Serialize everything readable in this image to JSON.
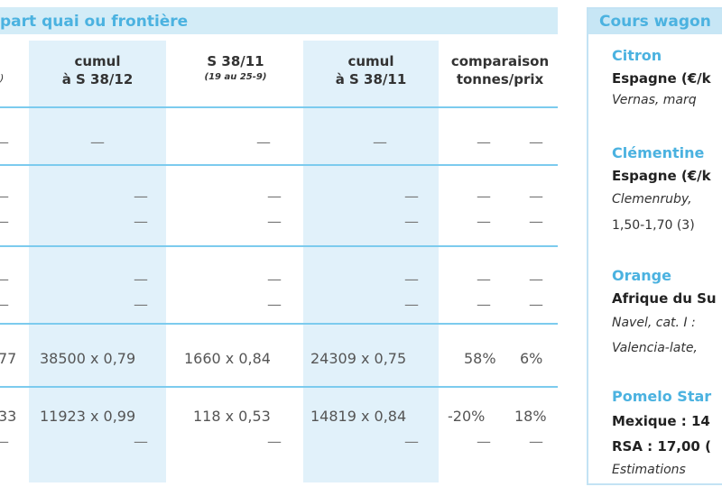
{
  "left_table": {
    "header_title": "part quai ou frontière",
    "left_stub_header": ")",
    "columns": [
      {
        "line1": "cumul",
        "line2": "à S 38/12",
        "sub": ""
      },
      {
        "line1": "S 38/11",
        "line2": "",
        "sub": "(19 au 25-9)"
      },
      {
        "line1": "cumul",
        "line2": "à S 38/11",
        "sub": ""
      },
      {
        "line1": "comparaison",
        "line2": "tonnes/prix",
        "sub": ""
      }
    ],
    "rows": [
      {
        "stub": "—",
        "c1": "—",
        "c2": "—",
        "c3": "—",
        "c4a": "—",
        "c4b": "—"
      },
      {
        "stub": "—",
        "c1": "—",
        "c2": "—",
        "c3": "—",
        "c4a": "—",
        "c4b": "—"
      },
      {
        "stub": "—",
        "c1": "—",
        "c2": "—",
        "c3": "—",
        "c4a": "—",
        "c4b": "—"
      },
      {
        "stub": "—",
        "c1": "—",
        "c2": "—",
        "c3": "—",
        "c4a": "—",
        "c4b": "—"
      },
      {
        "stub": "—",
        "c1": "—",
        "c2": "—",
        "c3": "—",
        "c4a": "—",
        "c4b": "—"
      },
      {
        "stub": "77",
        "c1": "38500 x 0,79",
        "c2": "1660 x 0,84",
        "c3": "24309 x 0,75",
        "c4a": "58%",
        "c4b": "6%"
      },
      {
        "stub": "33",
        "c1": "11923 x 0,99",
        "c2": "118 x 0,53",
        "c3": "14819 x 0,84",
        "c4a": "-20%",
        "c4b": "18%"
      },
      {
        "stub": "—",
        "c1": "—",
        "c2": "—",
        "c3": "—",
        "c4a": "—",
        "c4b": "—"
      }
    ]
  },
  "right_panel": {
    "header_title": "Cours wagon",
    "sections": [
      {
        "fruit": "Citron",
        "origin": "Espagne (€/k",
        "lines": [
          "Vernas, marq"
        ]
      },
      {
        "fruit": "Clémentine",
        "origin": "Espagne (€/k",
        "lines": [
          "Clemenruby,",
          "1,50-1,70 (3)"
        ]
      },
      {
        "fruit": "Orange",
        "origin": "Afrique du Su",
        "lines": [
          "Navel, cat. I :",
          "Valencia-late,"
        ]
      },
      {
        "fruit": "Pomelo Star",
        "origin": "Mexique : 14",
        "lines": [
          "RSA : 17,00 (",
          "Estimations"
        ]
      }
    ]
  },
  "colors": {
    "accent_blue": "#4bb2e0",
    "rule_blue": "#7ccbee",
    "shade_blue": "#e1f1fa"
  }
}
